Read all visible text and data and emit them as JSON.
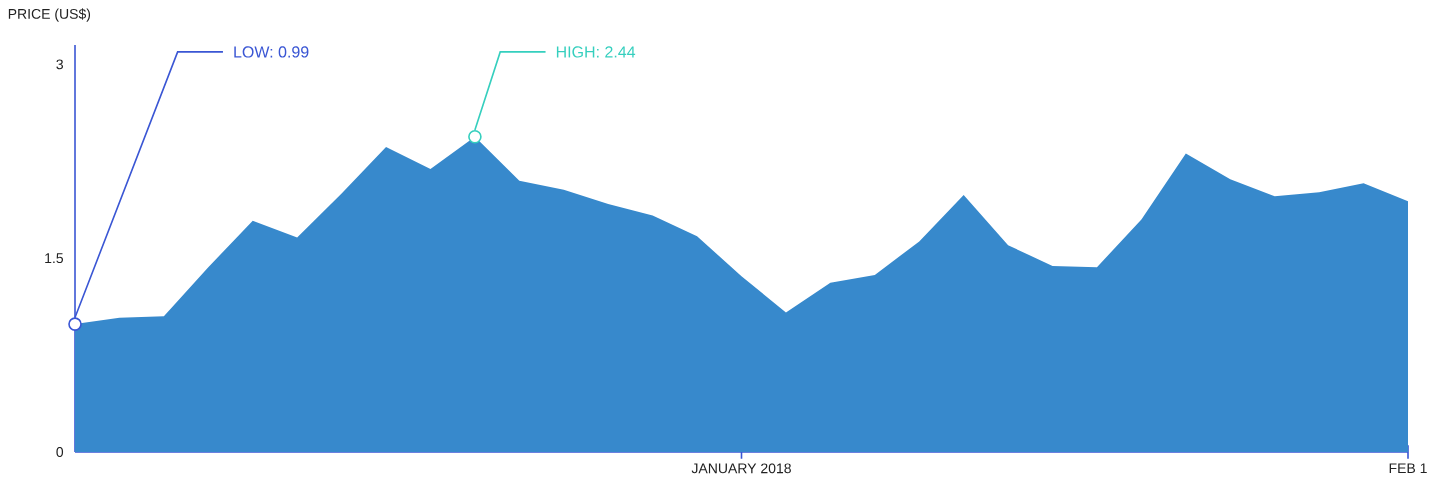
{
  "chart_data": {
    "type": "area",
    "ylabel": "PRICE (US$)",
    "x": [
      "2018-01-02",
      "2018-01-03",
      "2018-01-04",
      "2018-01-05",
      "2018-01-06",
      "2018-01-07",
      "2018-01-08",
      "2018-01-09",
      "2018-01-10",
      "2018-01-11",
      "2018-01-12",
      "2018-01-13",
      "2018-01-14",
      "2018-01-15",
      "2018-01-16",
      "2018-01-17",
      "2018-01-18",
      "2018-01-19",
      "2018-01-20",
      "2018-01-21",
      "2018-01-22",
      "2018-01-23",
      "2018-01-24",
      "2018-01-25",
      "2018-01-26",
      "2018-01-27",
      "2018-01-28",
      "2018-01-29",
      "2018-01-30",
      "2018-01-31",
      "2018-02-01"
    ],
    "series": [
      {
        "color": "#3789cc",
        "values": [
          0.99,
          1.04,
          1.05,
          1.43,
          1.79,
          1.66,
          2.0,
          2.36,
          2.19,
          2.44,
          2.1,
          2.03,
          1.92,
          1.83,
          1.67,
          1.36,
          1.08,
          1.31,
          1.37,
          1.63,
          1.99,
          1.6,
          1.44,
          1.43,
          1.8,
          2.31,
          2.11,
          1.98,
          2.01,
          2.08,
          1.94
        ]
      }
    ],
    "xlim": [
      "2018-01-02",
      "2018-02-01"
    ],
    "xticks": [
      {
        "value": "2018-01-17",
        "label": "JANUARY 2018"
      },
      {
        "value": "2018-02-01",
        "label": "FEB 1"
      }
    ],
    "ylim": [
      0,
      3.15
    ],
    "yticks": [
      0,
      1.5,
      3
    ],
    "annotations": [
      {
        "text": "LOW: 0.99",
        "x": "2018-01-02",
        "y": 0.99
      },
      {
        "text": "HIGH: 2.44",
        "x": "2018-01-11",
        "y": 2.44
      }
    ]
  }
}
